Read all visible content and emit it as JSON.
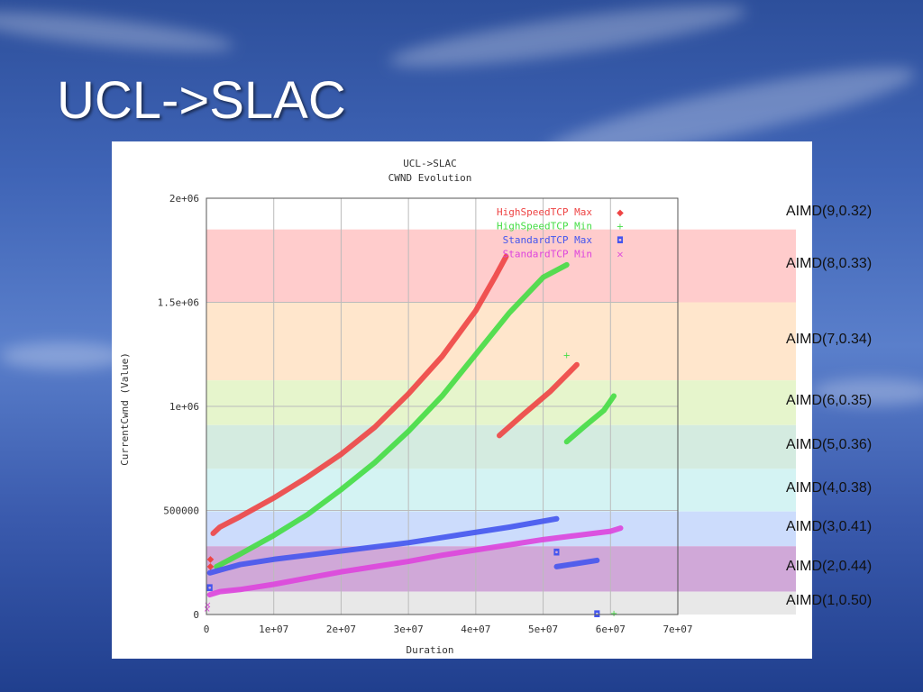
{
  "slide": {
    "title": "UCL->SLAC"
  },
  "background": {
    "colors": [
      "#2d4f9b",
      "#5a7fcb",
      "#203f8e"
    ]
  },
  "aimd": {
    "bands": [
      {
        "label": "AIMD(9,0.32)",
        "color": "#ffffff",
        "y0": 1850000,
        "y1": 2000000
      },
      {
        "label": "AIMD(8,0.33)",
        "color": "#ffcccc",
        "y0": 1500000,
        "y1": 1850000
      },
      {
        "label": "AIMD(7,0.34)",
        "color": "#ffe6cc",
        "y0": 1125000,
        "y1": 1500000
      },
      {
        "label": "AIMD(6,0.35)",
        "color": "#e6f5cc",
        "y0": 910000,
        "y1": 1125000
      },
      {
        "label": "AIMD(5,0.36)",
        "color": "#d4ebe0",
        "y0": 700000,
        "y1": 910000
      },
      {
        "label": "AIMD(4,0.38)",
        "color": "#d4f3f3",
        "y0": 495000,
        "y1": 700000
      },
      {
        "label": "AIMD(3,0.41)",
        "color": "#ccdcfc",
        "y0": 328000,
        "y1": 495000
      },
      {
        "label": "AIMD(2,0.44)",
        "color": "#d0a8d8",
        "y0": 110000,
        "y1": 328000
      },
      {
        "label": "AIMD(1,0.50)",
        "color": "#e8e8e8",
        "y0": 0,
        "y1": 110000
      }
    ]
  },
  "chart_data": {
    "type": "scatter",
    "title": "UCL->SLAC",
    "subtitle": "CWND Evolution",
    "xlabel": "Duration",
    "ylabel": "CurrentCwnd (Value)",
    "xlim": [
      0,
      70000000
    ],
    "ylim": [
      0,
      2000000
    ],
    "xticks": [
      0,
      10000000,
      20000000,
      30000000,
      40000000,
      50000000,
      60000000,
      70000000
    ],
    "xtick_labels": [
      "0",
      "1e+07",
      "2e+07",
      "3e+07",
      "4e+07",
      "5e+07",
      "6e+07",
      "7e+07"
    ],
    "yticks": [
      0,
      500000,
      1000000,
      1500000,
      2000000
    ],
    "ytick_labels": [
      "0",
      "500000",
      "1e+06",
      "1.5e+06",
      "2e+06"
    ],
    "grid": true,
    "legend_position": "top-right",
    "series": [
      {
        "name": "HighSpeedTCP Max",
        "color": "#ee4444",
        "marker": "◆",
        "segments": [
          [
            [
              1000000,
              390000
            ],
            [
              2000000,
              420000
            ],
            [
              5000000,
              470000
            ],
            [
              10000000,
              560000
            ],
            [
              15000000,
              660000
            ],
            [
              20000000,
              770000
            ],
            [
              25000000,
              900000
            ],
            [
              30000000,
              1060000
            ],
            [
              35000000,
              1240000
            ],
            [
              40000000,
              1460000
            ],
            [
              43000000,
              1630000
            ],
            [
              44500000,
              1720000
            ]
          ],
          [
            [
              43500000,
              860000
            ],
            [
              47000000,
              960000
            ],
            [
              51000000,
              1070000
            ],
            [
              55000000,
              1200000
            ]
          ]
        ],
        "points": [
          [
            600000,
            270000
          ],
          [
            600000,
            235000
          ]
        ]
      },
      {
        "name": "HighSpeedTCP Min",
        "color": "#44dd44",
        "marker": "+",
        "segments": [
          [
            [
              1500000,
              230000
            ],
            [
              5000000,
              290000
            ],
            [
              10000000,
              380000
            ],
            [
              15000000,
              480000
            ],
            [
              20000000,
              600000
            ],
            [
              25000000,
              730000
            ],
            [
              30000000,
              880000
            ],
            [
              35000000,
              1050000
            ],
            [
              40000000,
              1250000
            ],
            [
              45000000,
              1450000
            ],
            [
              50000000,
              1620000
            ],
            [
              53500000,
              1680000
            ]
          ],
          [
            [
              53500000,
              830000
            ],
            [
              56000000,
              900000
            ],
            [
              59000000,
              980000
            ],
            [
              60500000,
              1050000
            ]
          ]
        ],
        "points": [
          [
            53500000,
            1250000
          ],
          [
            60500000,
            8000
          ]
        ]
      },
      {
        "name": "StandardTCP Max",
        "color": "#4455ee",
        "marker": "◘",
        "segments": [
          [
            [
              500000,
              200000
            ],
            [
              5000000,
              240000
            ],
            [
              10000000,
              265000
            ],
            [
              15000000,
              285000
            ],
            [
              20000000,
              305000
            ],
            [
              25000000,
              325000
            ],
            [
              30000000,
              345000
            ],
            [
              35000000,
              370000
            ],
            [
              40000000,
              395000
            ],
            [
              45000000,
              420000
            ],
            [
              52000000,
              460000
            ]
          ],
          [
            [
              52000000,
              230000
            ],
            [
              54000000,
              240000
            ],
            [
              58000000,
              260000
            ]
          ]
        ],
        "points": [
          [
            52000000,
            300000
          ],
          [
            58000000,
            5000
          ],
          [
            500000,
            130000
          ]
        ]
      },
      {
        "name": "StandardTCP Min",
        "color": "#dd44dd",
        "marker": "×",
        "segments": [
          [
            [
              500000,
              95000
            ],
            [
              2000000,
              110000
            ],
            [
              5000000,
              120000
            ],
            [
              10000000,
              145000
            ],
            [
              15000000,
              175000
            ],
            [
              20000000,
              205000
            ],
            [
              25000000,
              230000
            ],
            [
              30000000,
              255000
            ],
            [
              35000000,
              285000
            ],
            [
              40000000,
              310000
            ],
            [
              45000000,
              335000
            ],
            [
              50000000,
              360000
            ],
            [
              55000000,
              380000
            ],
            [
              60000000,
              400000
            ],
            [
              61500000,
              415000
            ]
          ]
        ],
        "points": [
          [
            100000,
            30000
          ],
          [
            200000,
            50000
          ]
        ]
      }
    ]
  }
}
